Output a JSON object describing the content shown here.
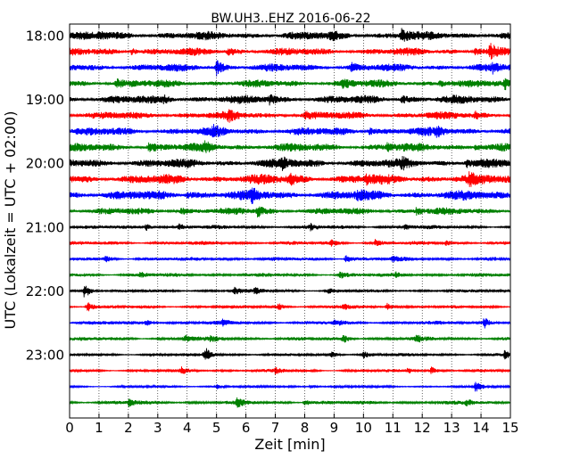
{
  "chart_data": {
    "type": "line",
    "subtype": "helicorder",
    "title": "BW.UH3..EHZ 2016-06-22",
    "xlabel": "Zeit  [min]",
    "ylabel": "UTC (Lokalzeit = UTC + 02:00)",
    "xlim": [
      0,
      15
    ],
    "x_ticks": [
      "0",
      "1",
      "2",
      "3",
      "4",
      "5",
      "6",
      "7",
      "8",
      "9",
      "10",
      "11",
      "12",
      "13",
      "14",
      "15"
    ],
    "y_tick_labels": [
      "18:00",
      "19:00",
      "20:00",
      "21:00",
      "22:00",
      "23:00"
    ],
    "y_tick_traces": [
      0,
      4,
      8,
      12,
      16,
      20
    ],
    "trace_minutes": 15,
    "grid": "vertical dotted at each minute",
    "color_cycle": [
      "#000000",
      "#ff0000",
      "#0000ff",
      "#008000"
    ],
    "traces": [
      {
        "start": "18:00",
        "amplitude": 0.55,
        "events": [
          {
            "t": 11.3,
            "a": 1.0
          },
          {
            "t": 8.9,
            "a": 0.45
          },
          {
            "t": 1.0,
            "a": 0.35
          }
        ]
      },
      {
        "start": "18:15",
        "amplitude": 0.5,
        "events": [
          {
            "t": 2.1,
            "a": 0.6
          },
          {
            "t": 5.4,
            "a": 0.55
          },
          {
            "t": 14.3,
            "a": 1.0
          },
          {
            "t": 13.8,
            "a": 0.5
          }
        ]
      },
      {
        "start": "18:30",
        "amplitude": 0.5,
        "events": [
          {
            "t": 5.0,
            "a": 1.1
          },
          {
            "t": 9.6,
            "a": 0.5
          },
          {
            "t": 14.4,
            "a": 0.5
          }
        ]
      },
      {
        "start": "18:45",
        "amplitude": 0.5,
        "events": [
          {
            "t": 1.6,
            "a": 0.5
          },
          {
            "t": 9.3,
            "a": 0.6
          },
          {
            "t": 12.6,
            "a": 0.5
          },
          {
            "t": 14.8,
            "a": 0.7
          }
        ]
      },
      {
        "start": "19:00",
        "amplitude": 0.55,
        "events": [
          {
            "t": 3.2,
            "a": 0.5
          },
          {
            "t": 6.8,
            "a": 0.55
          },
          {
            "t": 11.3,
            "a": 0.6
          }
        ]
      },
      {
        "start": "19:15",
        "amplitude": 0.5,
        "events": [
          {
            "t": 5.4,
            "a": 0.6
          },
          {
            "t": 8.0,
            "a": 0.45
          },
          {
            "t": 13.8,
            "a": 0.4
          }
        ]
      },
      {
        "start": "19:30",
        "amplitude": 0.55,
        "events": [
          {
            "t": 4.9,
            "a": 0.6
          },
          {
            "t": 10.2,
            "a": 0.55
          },
          {
            "t": 12.5,
            "a": 0.55
          }
        ]
      },
      {
        "start": "19:45",
        "amplitude": 0.55,
        "events": [
          {
            "t": 2.7,
            "a": 0.6
          },
          {
            "t": 4.6,
            "a": 0.55
          },
          {
            "t": 10.8,
            "a": 0.5
          },
          {
            "t": 13.8,
            "a": 0.55
          }
        ]
      },
      {
        "start": "20:00",
        "amplitude": 0.6,
        "events": [
          {
            "t": 7.2,
            "a": 0.7
          },
          {
            "t": 11.3,
            "a": 0.6
          },
          {
            "t": 13.5,
            "a": 0.55
          }
        ]
      },
      {
        "start": "20:15",
        "amplitude": 0.65,
        "events": [
          {
            "t": 7.5,
            "a": 0.7
          },
          {
            "t": 10.1,
            "a": 0.6
          },
          {
            "t": 13.6,
            "a": 0.55
          }
        ]
      },
      {
        "start": "20:30",
        "amplitude": 0.65,
        "events": [
          {
            "t": 6.2,
            "a": 0.8
          },
          {
            "t": 9.8,
            "a": 0.6
          },
          {
            "t": 4.0,
            "a": 0.55
          }
        ]
      },
      {
        "start": "20:45",
        "amplitude": 0.45,
        "events": [
          {
            "t": 6.4,
            "a": 0.8
          },
          {
            "t": 11.8,
            "a": 0.6
          },
          {
            "t": 3.8,
            "a": 0.45
          }
        ]
      },
      {
        "start": "21:00",
        "amplitude": 0.25,
        "events": [
          {
            "t": 2.6,
            "a": 0.55
          },
          {
            "t": 3.7,
            "a": 0.5
          },
          {
            "t": 8.2,
            "a": 0.4
          },
          {
            "t": 11.4,
            "a": 0.4
          }
        ]
      },
      {
        "start": "21:15",
        "amplitude": 0.25,
        "events": [
          {
            "t": 8.9,
            "a": 0.4
          },
          {
            "t": 10.4,
            "a": 0.45
          },
          {
            "t": 12.8,
            "a": 0.35
          }
        ]
      },
      {
        "start": "21:30",
        "amplitude": 0.25,
        "events": [
          {
            "t": 1.2,
            "a": 0.4
          },
          {
            "t": 9.4,
            "a": 0.75
          },
          {
            "t": 11.0,
            "a": 0.4
          }
        ]
      },
      {
        "start": "21:45",
        "amplitude": 0.25,
        "events": [
          {
            "t": 9.2,
            "a": 0.55
          },
          {
            "t": 2.4,
            "a": 0.35
          },
          {
            "t": 11.1,
            "a": 0.3
          }
        ]
      },
      {
        "start": "22:00",
        "amplitude": 0.2,
        "events": [
          {
            "t": 0.5,
            "a": 1.2
          },
          {
            "t": 5.6,
            "a": 0.6
          },
          {
            "t": 6.3,
            "a": 0.5
          },
          {
            "t": 8.8,
            "a": 0.4
          }
        ]
      },
      {
        "start": "22:15",
        "amplitude": 0.2,
        "events": [
          {
            "t": 0.6,
            "a": 0.8
          },
          {
            "t": 7.1,
            "a": 0.5
          },
          {
            "t": 9.3,
            "a": 0.45
          },
          {
            "t": 10.8,
            "a": 0.6
          }
        ]
      },
      {
        "start": "22:30",
        "amplitude": 0.25,
        "events": [
          {
            "t": 2.6,
            "a": 0.45
          },
          {
            "t": 5.2,
            "a": 0.4
          },
          {
            "t": 9.0,
            "a": 0.45
          },
          {
            "t": 14.1,
            "a": 0.85
          }
        ]
      },
      {
        "start": "22:45",
        "amplitude": 0.25,
        "events": [
          {
            "t": 3.9,
            "a": 0.6
          },
          {
            "t": 9.3,
            "a": 0.65
          },
          {
            "t": 4.8,
            "a": 0.4
          },
          {
            "t": 11.8,
            "a": 0.45
          }
        ]
      },
      {
        "start": "23:00",
        "amplitude": 0.2,
        "events": [
          {
            "t": 4.6,
            "a": 1.2
          },
          {
            "t": 8.9,
            "a": 0.5
          },
          {
            "t": 10.0,
            "a": 0.45
          },
          {
            "t": 14.8,
            "a": 0.55
          }
        ]
      },
      {
        "start": "23:15",
        "amplitude": 0.2,
        "events": [
          {
            "t": 3.8,
            "a": 0.45
          },
          {
            "t": 7.0,
            "a": 0.5
          },
          {
            "t": 12.3,
            "a": 0.55
          },
          {
            "t": 11.5,
            "a": 0.4
          }
        ]
      },
      {
        "start": "23:30",
        "amplitude": 0.15,
        "events": [
          {
            "t": 5.0,
            "a": 0.4
          },
          {
            "t": 8.2,
            "a": 0.4
          },
          {
            "t": 13.8,
            "a": 0.8
          }
        ]
      },
      {
        "start": "23:45",
        "amplitude": 0.25,
        "events": [
          {
            "t": 2.0,
            "a": 0.55
          },
          {
            "t": 5.7,
            "a": 0.6
          },
          {
            "t": 8.0,
            "a": 0.55
          },
          {
            "t": 13.5,
            "a": 0.5
          }
        ]
      }
    ]
  }
}
